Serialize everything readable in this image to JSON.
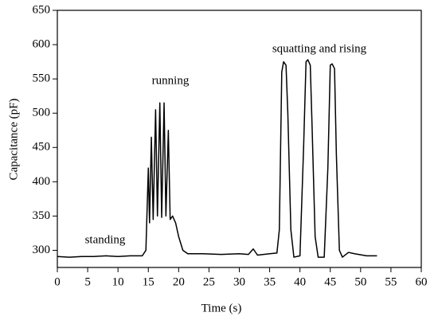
{
  "chart_data": {
    "type": "line",
    "xlabel": "Time (s)",
    "ylabel": "Capacitance (pF)",
    "annotations": [
      "standing",
      "running",
      "squatting and rising"
    ],
    "color": "#000000",
    "x": [
      0,
      2,
      4,
      6,
      8,
      10,
      12,
      14,
      14.6,
      14.8,
      15.0,
      15.2,
      15.5,
      15.8,
      16.2,
      16.5,
      16.9,
      17.2,
      17.6,
      17.9,
      18.3,
      18.6,
      19.0,
      19.5,
      20.0,
      20.7,
      21.5,
      24,
      27,
      30,
      31.5,
      32.3,
      33,
      35,
      36.2,
      36.6,
      37.0,
      37.3,
      37.7,
      38.0,
      38.5,
      39.0,
      40.0,
      40.6,
      41.0,
      41.3,
      41.7,
      42.0,
      42.5,
      43.0,
      44.0,
      44.6,
      45.0,
      45.3,
      45.7,
      46.0,
      46.5,
      47.0,
      48.0,
      49.0,
      51.0,
      52.7
    ],
    "values": [
      291,
      290,
      291,
      291,
      292,
      291,
      292,
      292,
      300,
      360,
      420,
      340,
      465,
      345,
      505,
      350,
      515,
      348,
      515,
      350,
      475,
      345,
      350,
      340,
      320,
      300,
      295,
      295,
      294,
      295,
      294,
      302,
      293,
      295,
      296,
      330,
      560,
      575,
      570,
      500,
      330,
      290,
      292,
      450,
      575,
      578,
      570,
      480,
      320,
      290,
      290,
      420,
      570,
      572,
      565,
      440,
      300,
      290,
      297,
      295,
      292,
      292
    ],
    "xlim": [
      0,
      60
    ],
    "xticks": [
      0,
      5,
      10,
      15,
      20,
      25,
      30,
      35,
      40,
      45,
      50,
      55,
      60
    ],
    "ylim": [
      275,
      650
    ],
    "yticks": [
      300,
      350,
      400,
      450,
      500,
      550,
      600,
      650
    ]
  }
}
